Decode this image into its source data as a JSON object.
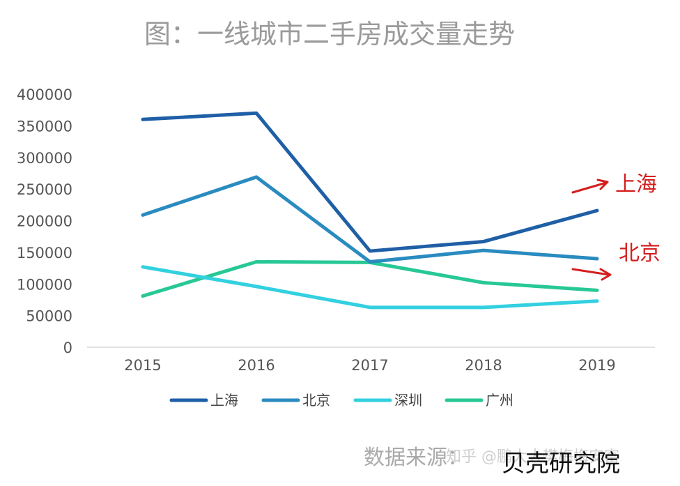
{
  "chart_data": {
    "type": "line",
    "title": "图：一线城市二手房成交量走势",
    "categories": [
      "2015",
      "2016",
      "2017",
      "2018",
      "2019"
    ],
    "ylim": [
      0,
      400000
    ],
    "yticks": [
      0,
      50000,
      100000,
      150000,
      200000,
      250000,
      300000,
      350000,
      400000
    ],
    "grid": false,
    "legend_position": "bottom",
    "series": [
      {
        "name": "上海",
        "color": "#1f5fa6",
        "values": [
          360000,
          370000,
          152000,
          167000,
          216000
        ]
      },
      {
        "name": "北京",
        "color": "#2a8bc0",
        "values": [
          209000,
          269000,
          135000,
          153000,
          140000
        ]
      },
      {
        "name": "深圳",
        "color": "#33d0e0",
        "values": [
          127000,
          96000,
          63000,
          63000,
          73000
        ]
      },
      {
        "name": "广州",
        "color": "#27c896",
        "values": [
          81000,
          135000,
          134000,
          102000,
          90000
        ]
      }
    ],
    "annotations": [
      {
        "text": "上海",
        "color": "#d41e1e"
      },
      {
        "text": "北京",
        "color": "#d41e1e"
      }
    ]
  },
  "footer": {
    "source_label": "数据来源：",
    "source_value": "贝壳研究院",
    "watermark": "知乎 @鹏大大樊梅梅安富"
  }
}
